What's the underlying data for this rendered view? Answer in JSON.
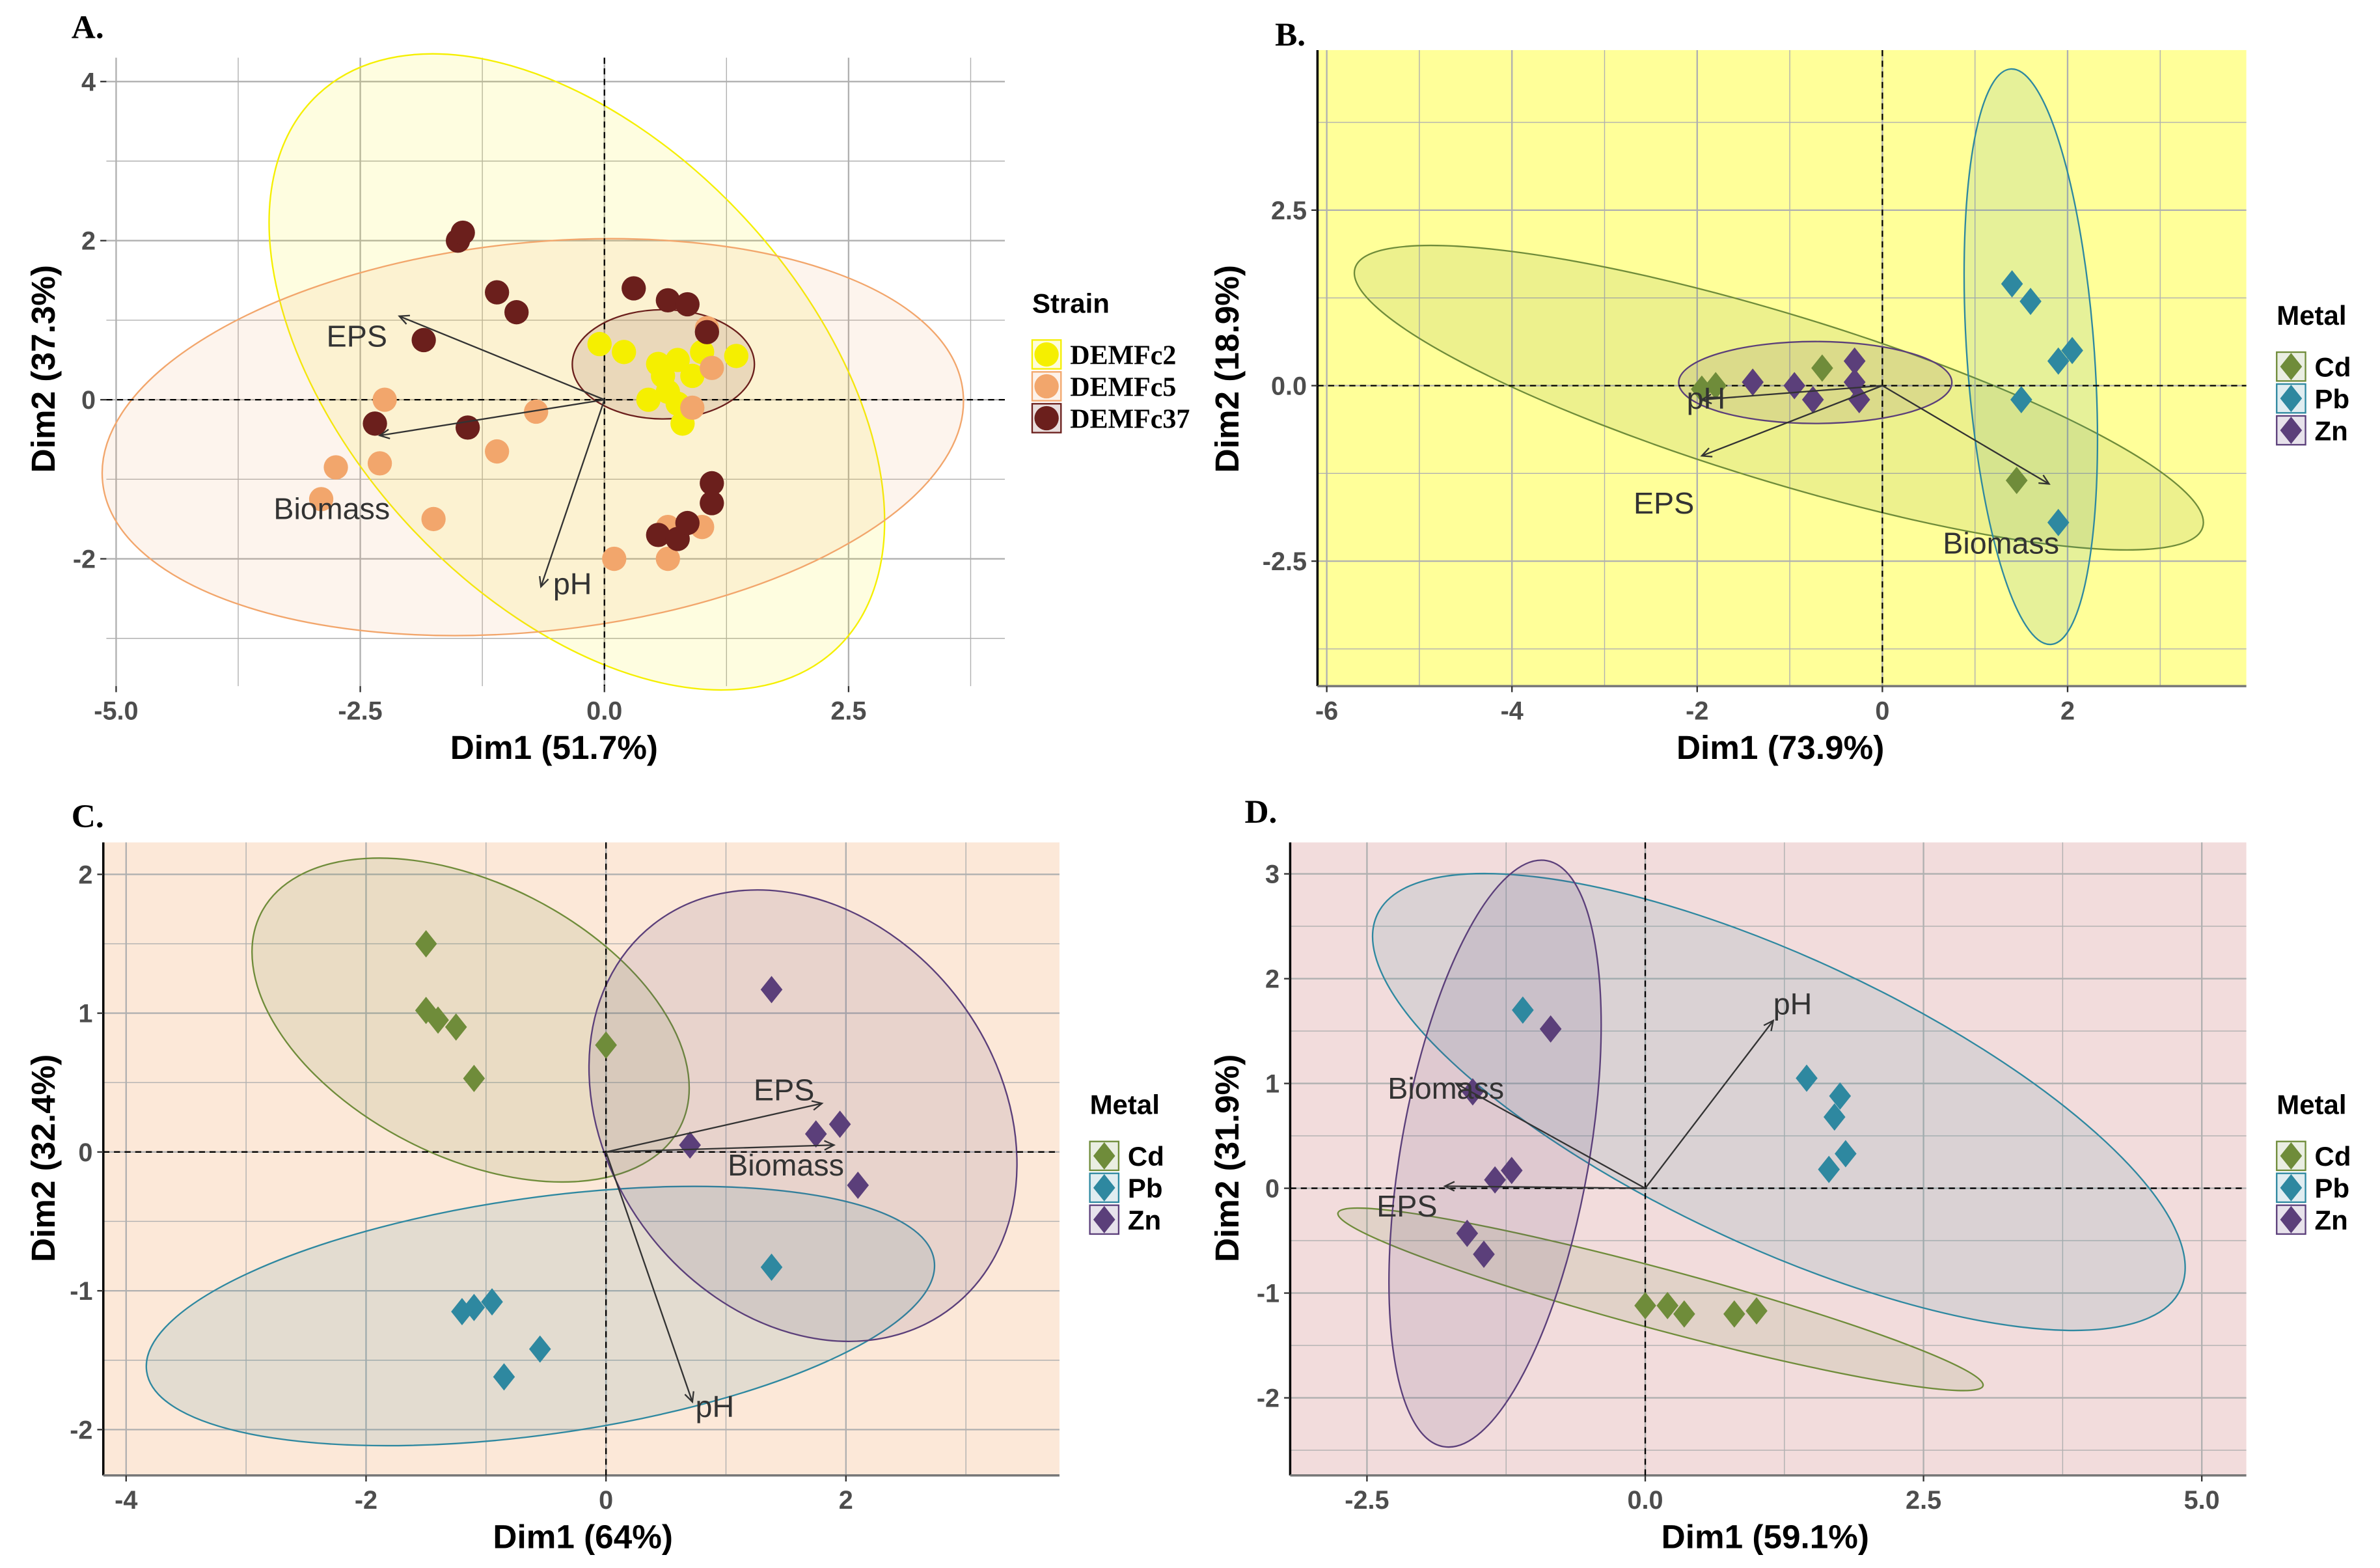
{
  "chart_data": [
    {
      "type": "scatter",
      "panel_label": "A.",
      "xlabel": "Dim1 (51.7%)",
      "ylabel": "Dim2 (37.3%)",
      "xlim": [
        -5.1,
        4.1
      ],
      "ylim": [
        -3.6,
        4.3
      ],
      "xticks": [
        -5,
        -2.5,
        0,
        2.5
      ],
      "xtick_labels": [
        "-5.0",
        "-2.5",
        "0.0",
        "2.5"
      ],
      "yticks": [
        -2,
        0,
        2,
        4
      ],
      "ytick_labels": [
        "-2",
        "0",
        "2",
        "4"
      ],
      "background": "#ffffff",
      "marker": "circle",
      "legend_title": "Strain",
      "legend_placement": "right",
      "grid": true,
      "series": [
        {
          "name": "DEMFc2",
          "color": "#f5ef00",
          "points": [
            [
              -0.05,
              0.7
            ],
            [
              0.2,
              0.6
            ],
            [
              0.55,
              0.45
            ],
            [
              0.75,
              0.5
            ],
            [
              1.0,
              0.6
            ],
            [
              1.35,
              0.55
            ],
            [
              0.45,
              0.0
            ],
            [
              0.65,
              0.1
            ],
            [
              0.75,
              -0.05
            ],
            [
              0.8,
              -0.3
            ],
            [
              0.6,
              0.3
            ],
            [
              0.9,
              0.3
            ]
          ]
        },
        {
          "name": "DEMFc5",
          "color": "#f2a66c",
          "points": [
            [
              -2.25,
              0.0
            ],
            [
              -0.7,
              -0.15
            ],
            [
              -1.1,
              -0.65
            ],
            [
              -2.75,
              -0.85
            ],
            [
              -2.3,
              -0.8
            ],
            [
              -2.9,
              -1.25
            ],
            [
              -1.75,
              -1.5
            ],
            [
              0.1,
              -2.0
            ],
            [
              0.65,
              -2.0
            ],
            [
              0.65,
              -1.6
            ],
            [
              1.0,
              -1.6
            ],
            [
              1.1,
              0.4
            ],
            [
              0.9,
              -0.1
            ],
            [
              1.05,
              0.9
            ]
          ]
        },
        {
          "name": "DEMFc37",
          "color": "#6b1f1c",
          "points": [
            [
              -1.5,
              2.0
            ],
            [
              -1.45,
              2.1
            ],
            [
              -1.1,
              1.35
            ],
            [
              -0.9,
              1.1
            ],
            [
              0.3,
              1.4
            ],
            [
              0.65,
              1.25
            ],
            [
              0.85,
              1.2
            ],
            [
              -1.85,
              0.75
            ],
            [
              -2.35,
              -0.3
            ],
            [
              -1.4,
              -0.35
            ],
            [
              1.05,
              0.85
            ],
            [
              1.1,
              -1.05
            ],
            [
              1.1,
              -1.3
            ],
            [
              0.55,
              -1.7
            ],
            [
              0.75,
              -1.75
            ],
            [
              0.85,
              -1.55
            ]
          ]
        }
      ],
      "arrows": [
        {
          "label": "EPS",
          "x": -2.1,
          "y": 1.05
        },
        {
          "label": "Biomass",
          "x": -2.3,
          "y": -0.45
        },
        {
          "label": "pH",
          "x": -0.65,
          "y": -2.35
        }
      ]
    },
    {
      "type": "scatter",
      "panel_label": "B.",
      "xlabel": "Dim1 (73.9%)",
      "ylabel": "Dim2 (18.9%)",
      "xlim": [
        -6.1,
        3.93
      ],
      "ylim": [
        -4.28,
        4.78
      ],
      "xticks": [
        -6,
        -4,
        -2,
        0,
        2
      ],
      "xtick_labels": [
        "-6",
        "-4",
        "-2",
        "0",
        "2"
      ],
      "yticks": [
        -2.5,
        0,
        2.5
      ],
      "ytick_labels": [
        "-2.5",
        "0.0",
        "2.5"
      ],
      "background": "#ffff99",
      "marker": "diamond",
      "legend_title": "Metal",
      "legend_placement": "right",
      "grid": true,
      "series": [
        {
          "name": "Cd",
          "color": "#6f8c3a",
          "points": [
            [
              -1.95,
              -0.05
            ],
            [
              -1.8,
              0.0
            ],
            [
              -0.65,
              0.25
            ],
            [
              1.45,
              -1.35
            ]
          ]
        },
        {
          "name": "Pb",
          "color": "#2e88a0",
          "points": [
            [
              1.4,
              1.45
            ],
            [
              1.6,
              1.2
            ],
            [
              1.9,
              0.35
            ],
            [
              2.05,
              0.5
            ],
            [
              1.5,
              -0.2
            ],
            [
              1.9,
              -1.95
            ]
          ]
        },
        {
          "name": "Zn",
          "color": "#5b3f7a",
          "points": [
            [
              -1.4,
              0.05
            ],
            [
              -0.95,
              0.0
            ],
            [
              -0.75,
              -0.2
            ],
            [
              -0.3,
              0.35
            ],
            [
              -0.3,
              0.05
            ],
            [
              -0.25,
              -0.2
            ]
          ]
        }
      ],
      "arrows": [
        {
          "label": "pH",
          "x": -1.95,
          "y": -0.2
        },
        {
          "label": "EPS",
          "x": -1.95,
          "y": -1.0
        },
        {
          "label": "Biomass",
          "x": 1.8,
          "y": -1.4
        }
      ]
    },
    {
      "type": "scatter",
      "panel_label": "C.",
      "xlabel": "Dim1 (64%)",
      "ylabel": "Dim2 (32.4%)",
      "xlim": [
        -4.19,
        3.78
      ],
      "ylim": [
        -2.33,
        2.23
      ],
      "xticks": [
        -4,
        -2,
        0,
        2
      ],
      "xtick_labels": [
        "-4",
        "-2",
        "0",
        "2"
      ],
      "yticks": [
        -2,
        -1,
        0,
        1,
        2
      ],
      "ytick_labels": [
        "-2",
        "-1",
        "0",
        "1",
        "2"
      ],
      "background": "#fce8d8",
      "marker": "diamond",
      "legend_title": "Metal",
      "legend_placement": "right",
      "grid": true,
      "series": [
        {
          "name": "Cd",
          "color": "#6f8c3a",
          "points": [
            [
              -1.5,
              1.5
            ],
            [
              -1.5,
              1.02
            ],
            [
              -1.4,
              0.95
            ],
            [
              -1.25,
              0.9
            ],
            [
              -1.1,
              0.53
            ],
            [
              0.0,
              0.77
            ]
          ]
        },
        {
          "name": "Pb",
          "color": "#2e88a0",
          "points": [
            [
              -1.2,
              -1.15
            ],
            [
              -1.1,
              -1.12
            ],
            [
              -0.95,
              -1.08
            ],
            [
              -0.55,
              -1.42
            ],
            [
              -0.85,
              -1.62
            ],
            [
              1.38,
              -0.83
            ]
          ]
        },
        {
          "name": "Zn",
          "color": "#5b3f7a",
          "points": [
            [
              1.38,
              1.17
            ],
            [
              0.7,
              0.05
            ],
            [
              1.75,
              0.13
            ],
            [
              1.95,
              0.2
            ],
            [
              2.1,
              -0.24
            ]
          ]
        }
      ],
      "arrows": [
        {
          "label": "EPS",
          "x": 1.8,
          "y": 0.35
        },
        {
          "label": "Biomass",
          "x": 1.9,
          "y": 0.05
        },
        {
          "label": "pH",
          "x": 0.72,
          "y": -1.8
        }
      ]
    },
    {
      "type": "scatter",
      "panel_label": "D.",
      "xlabel": "Dim1 (59.1%)",
      "ylabel": "Dim2 (31.9%)",
      "xlim": [
        -3.19,
        5.4
      ],
      "ylim": [
        -2.74,
        3.3
      ],
      "xticks": [
        -2.5,
        0,
        2.5,
        5
      ],
      "xtick_labels": [
        "-2.5",
        "0.0",
        "2.5",
        "5.0"
      ],
      "yticks": [
        -2,
        -1,
        0,
        1,
        2,
        3
      ],
      "ytick_labels": [
        "-2",
        "-1",
        "0",
        "1",
        "2",
        "3"
      ],
      "background": "#f2dcdc",
      "marker": "diamond",
      "legend_title": "Metal",
      "legend_placement": "right",
      "grid": true,
      "series": [
        {
          "name": "Cd",
          "color": "#6f8c3a",
          "points": [
            [
              0.0,
              -1.12
            ],
            [
              0.2,
              -1.12
            ],
            [
              0.35,
              -1.2
            ],
            [
              0.8,
              -1.2
            ],
            [
              1.0,
              -1.17
            ]
          ]
        },
        {
          "name": "Pb",
          "color": "#2e88a0",
          "points": [
            [
              -1.1,
              1.7
            ],
            [
              1.45,
              1.05
            ],
            [
              1.75,
              0.88
            ],
            [
              1.7,
              0.68
            ],
            [
              1.65,
              0.18
            ],
            [
              1.8,
              0.33
            ]
          ]
        },
        {
          "name": "Zn",
          "color": "#5b3f7a",
          "points": [
            [
              -0.85,
              1.52
            ],
            [
              -1.55,
              0.92
            ],
            [
              -1.2,
              0.17
            ],
            [
              -1.35,
              0.08
            ],
            [
              -1.6,
              -0.43
            ],
            [
              -1.45,
              -0.63
            ]
          ]
        }
      ],
      "arrows": [
        {
          "label": "pH",
          "x": 1.15,
          "y": 1.6
        },
        {
          "label": "Biomass",
          "x": -1.7,
          "y": 1.0
        },
        {
          "label": "EPS",
          "x": -1.8,
          "y": 0.02
        }
      ]
    }
  ]
}
